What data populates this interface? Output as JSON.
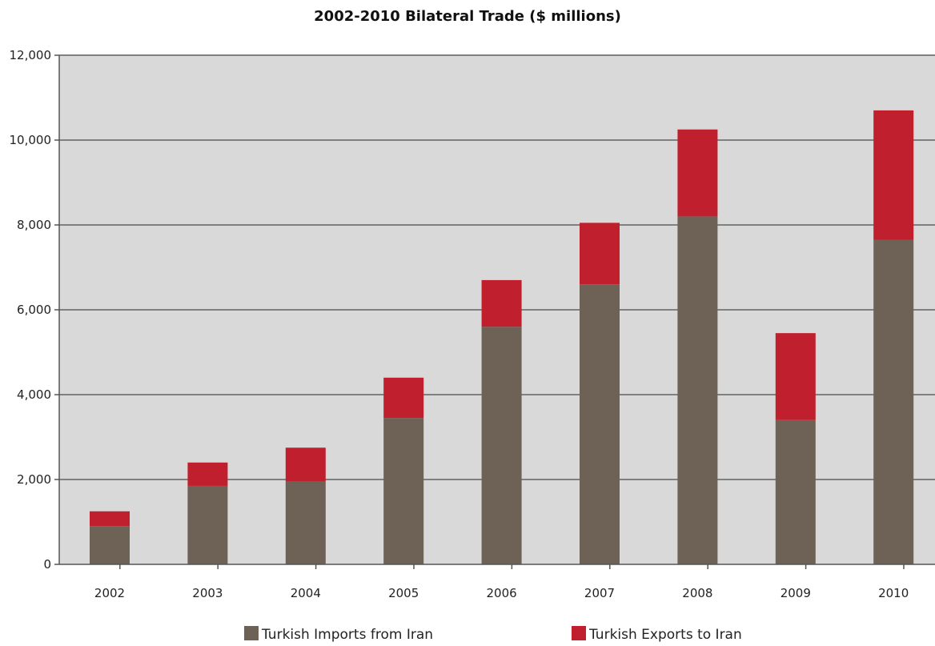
{
  "chart_data": {
    "type": "bar",
    "stacked": true,
    "title": "2002-2010 Bilateral Trade ($ millions)",
    "xlabel": "",
    "ylabel": "",
    "categories": [
      "2002",
      "2003",
      "2004",
      "2005",
      "2006",
      "2007",
      "2008",
      "2009",
      "2010"
    ],
    "series": [
      {
        "name": "Turkish Imports from Iran",
        "color": "#6e6155",
        "values": [
          900,
          1850,
          1950,
          3450,
          5600,
          6600,
          8200,
          3400,
          7650
        ]
      },
      {
        "name": "Turkish Exports to Iran",
        "color": "#c0202e",
        "values": [
          350,
          550,
          800,
          950,
          1100,
          1450,
          2050,
          2050,
          3050
        ]
      }
    ],
    "ylim": [
      0,
      12000
    ],
    "yticks": [
      0,
      2000,
      4000,
      6000,
      8000,
      10000,
      12000
    ],
    "ytick_labels": [
      "0",
      "2,000",
      "4,000",
      "6,000",
      "8,000",
      "10,000",
      "12,000"
    ],
    "grid": true,
    "plot_background": "#d9d9d9",
    "gridline_color": "#808080",
    "legend_position": "bottom"
  }
}
